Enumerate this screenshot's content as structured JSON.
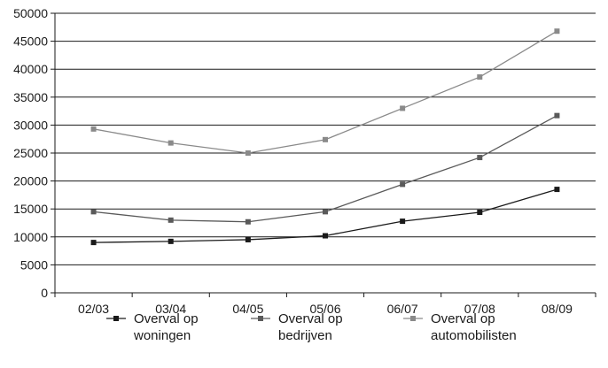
{
  "chart_data": {
    "type": "line",
    "title": "",
    "xlabel": "",
    "ylabel": "",
    "categories": [
      "02/03",
      "03/04",
      "04/05",
      "05/06",
      "06/07",
      "07/08",
      "08/09"
    ],
    "ylim": [
      0,
      50000
    ],
    "yticks": [
      0,
      5000,
      10000,
      15000,
      20000,
      25000,
      30000,
      35000,
      40000,
      45000,
      50000
    ],
    "grid": true,
    "legend_position": "bottom",
    "series": [
      {
        "name": "Overval op woningen",
        "label_lines": [
          "Overval op",
          "woningen"
        ],
        "color": "#1a1a1a",
        "values": [
          9000,
          9200,
          9500,
          10200,
          12800,
          14400,
          18500
        ]
      },
      {
        "name": "Overval op bedrijven",
        "label_lines": [
          "Overval op",
          "bedrijven"
        ],
        "color": "#5a5a5a",
        "values": [
          14500,
          13000,
          12700,
          14500,
          19400,
          24200,
          31700
        ]
      },
      {
        "name": "Overval op automobilisten",
        "label_lines": [
          "Overval op",
          "automobilisten"
        ],
        "color": "#8a8a8a",
        "values": [
          29300,
          26800,
          25000,
          27400,
          33000,
          38600,
          46800
        ]
      }
    ]
  }
}
